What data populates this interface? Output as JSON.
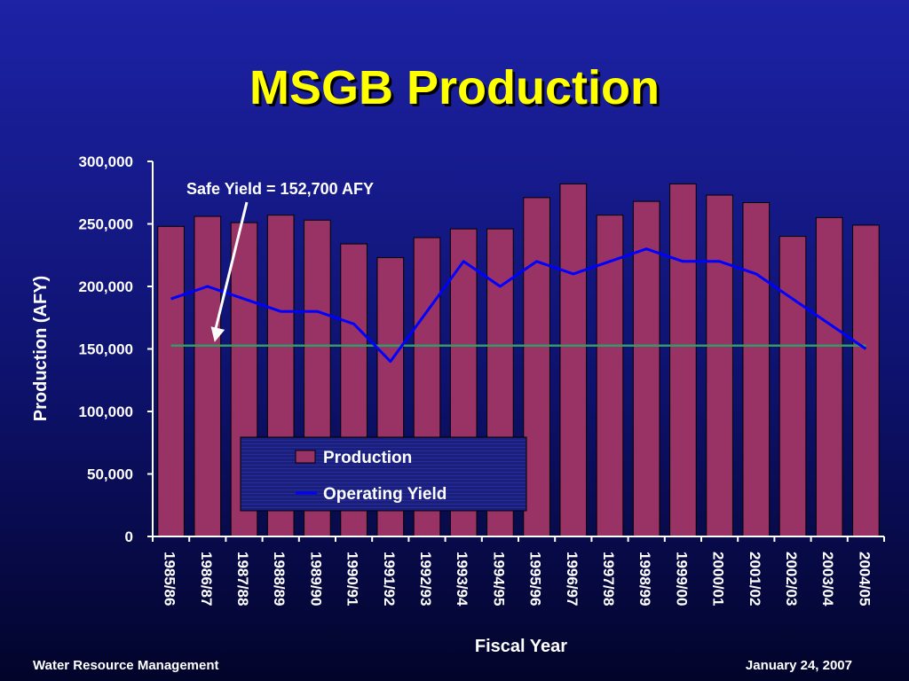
{
  "slide": {
    "title": "MSGB Production",
    "footer_left": "Water Resource Management",
    "footer_right": "January 24, 2007"
  },
  "chart_data": {
    "type": "bar",
    "title": "",
    "xlabel": "Fiscal Year",
    "ylabel": "Production (AFY)",
    "ylim": [
      0,
      300000
    ],
    "yticks": [
      0,
      50000,
      100000,
      150000,
      200000,
      250000,
      300000
    ],
    "ytick_labels": [
      "0",
      "50,000",
      "100,000",
      "150,000",
      "200,000",
      "250,000",
      "300,000"
    ],
    "categories": [
      "1985/86",
      "1986/87",
      "1987/88",
      "1988/89",
      "1989/90",
      "1990/91",
      "1991/92",
      "1992/93",
      "1993/94",
      "1994/95",
      "1995/96",
      "1996/97",
      "1997/98",
      "1998/99",
      "1999/00",
      "2000/01",
      "2001/02",
      "2002/03",
      "2003/04",
      "2004/05"
    ],
    "series": [
      {
        "name": "Production",
        "kind": "bar",
        "color": "#993366",
        "values": [
          248000,
          256000,
          251000,
          257000,
          253000,
          234000,
          223000,
          239000,
          246000,
          246000,
          271000,
          282000,
          257000,
          268000,
          282000,
          273000,
          267000,
          240000,
          255000,
          249000
        ]
      },
      {
        "name": "Operating Yield",
        "kind": "line",
        "color": "#0000ff",
        "values": [
          190000,
          200000,
          190000,
          180000,
          180000,
          170000,
          140000,
          180000,
          220000,
          200000,
          220000,
          210000,
          220000,
          230000,
          220000,
          220000,
          210000,
          190000,
          170000,
          150000
        ]
      }
    ],
    "reference_line": {
      "value": 152700,
      "color": "#339966"
    },
    "annotation": {
      "text": "Safe Yield = 152,700 AFY",
      "points_to_value": 152700,
      "points_to_category": "1986/87"
    },
    "legend": {
      "placement": "bottom-center"
    },
    "grid": false
  }
}
